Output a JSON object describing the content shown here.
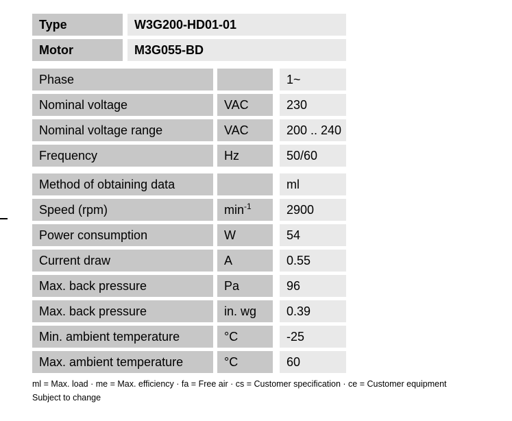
{
  "colors": {
    "label_cell_bg": "#c7c7c7",
    "value_cell_bg": "#e9e9e9",
    "text": "#000000",
    "page_bg": "#ffffff"
  },
  "header_table": {
    "rows": [
      {
        "label": "Type",
        "value": "W3G200-HD01-01"
      },
      {
        "label": "Motor",
        "value": "M3G055-BD"
      }
    ]
  },
  "spec_sections": [
    {
      "rows": [
        {
          "label": "Phase",
          "unit": "",
          "value": "1~"
        },
        {
          "label": "Nominal voltage",
          "unit": "VAC",
          "value": "230"
        },
        {
          "label": "Nominal voltage range",
          "unit": "VAC",
          "value": "200 .. 240"
        },
        {
          "label": "Frequency",
          "unit": "Hz",
          "value": "50/60"
        }
      ]
    },
    {
      "rows": [
        {
          "label": "Method of obtaining data",
          "unit": "",
          "value": "ml"
        },
        {
          "label": "Speed (rpm)",
          "unit": "min",
          "unit_sup": "-1",
          "value": "2900"
        },
        {
          "label": "Power consumption",
          "unit": "W",
          "value": "54"
        },
        {
          "label": "Current draw",
          "unit": "A",
          "value": "0.55"
        },
        {
          "label": "Max. back pressure",
          "unit": "Pa",
          "value": "96"
        },
        {
          "label": "Max. back pressure",
          "unit": "in. wg",
          "value": "0.39"
        },
        {
          "label": "Min. ambient temperature",
          "unit": "°C",
          "value": "-25"
        },
        {
          "label": "Max. ambient temperature",
          "unit": "°C",
          "value": "60"
        }
      ]
    }
  ],
  "footer": {
    "legend": "ml = Max. load · me = Max. efficiency · fa = Free air · cs = Customer specification · ce = Customer equipment",
    "note": "Subject to change"
  }
}
